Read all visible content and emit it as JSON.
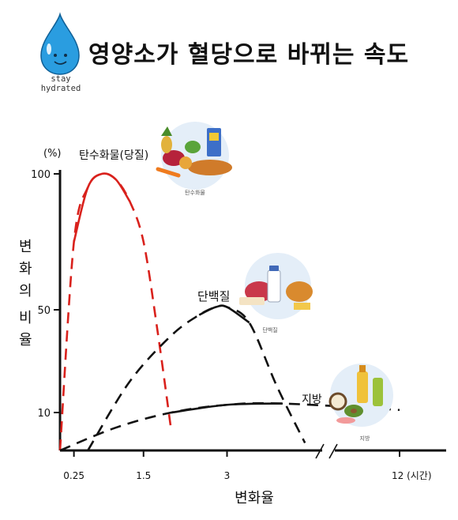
{
  "header": {
    "title": "영양소가 혈당으로 바뀌는 속도",
    "brand_line1": "stay",
    "brand_line2": "hydrated"
  },
  "colors": {
    "carbohydrate": "#d9211c",
    "protein": "#111111",
    "fat": "#111111",
    "drop": "#2a9de0"
  },
  "icons": [
    "water-drop-icon",
    "carbohydrate-food-icon",
    "protein-food-icon",
    "fat-food-icon"
  ],
  "chart_data": {
    "type": "line",
    "title": "",
    "xlabel": "변화율",
    "ylabel": "변화의 비율",
    "y_unit": "(%)",
    "x_ticks": [
      "0.25",
      "1.5",
      "3",
      "12 (시간)"
    ],
    "y_ticks": [
      "10",
      "50",
      "100"
    ],
    "x_axis_break": true,
    "series": [
      {
        "name": "탄수화물(당질)",
        "icon_caption": "탄수화물",
        "color": "#d9211c",
        "x": [
          0,
          0.25,
          0.5,
          0.75,
          1.0,
          1.25,
          1.5,
          1.75,
          2.0
        ],
        "y": [
          0,
          75,
          95,
          100,
          98,
          90,
          75,
          42,
          5
        ]
      },
      {
        "name": "단백질",
        "icon_caption": "단백질",
        "color": "#111111",
        "x": [
          0.5,
          1.25,
          2.0,
          2.5,
          2.8,
          3.0,
          3.4,
          3.9,
          4.4
        ],
        "y": [
          0,
          22,
          40,
          48,
          51,
          51,
          45,
          20,
          2
        ]
      },
      {
        "name": "지방",
        "icon_caption": "지방",
        "color": "#111111",
        "x": [
          0,
          1.0,
          2.0,
          3.0,
          4.0,
          12
        ],
        "y": [
          0,
          6,
          10,
          13,
          13.5,
          11
        ]
      }
    ]
  }
}
